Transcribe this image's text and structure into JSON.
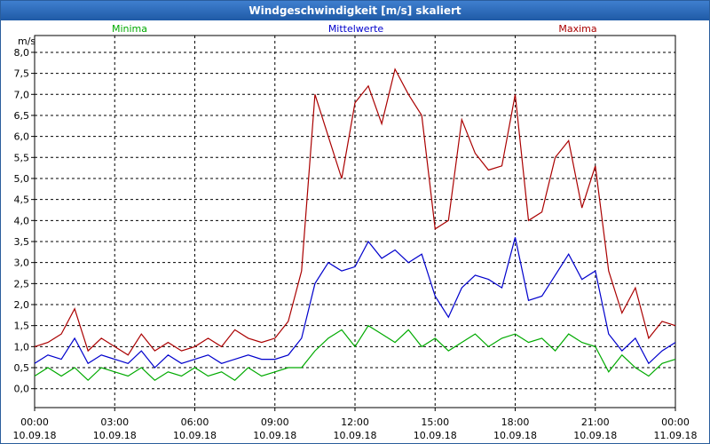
{
  "window": {
    "title": "Windgeschwindigkeit [m/s] skaliert"
  },
  "chart_data": {
    "type": "line",
    "title": "Windgeschwindigkeit [m/s] skaliert",
    "ylabel": "m/s",
    "xlabel": "",
    "ylim": [
      -0.45,
      8.4
    ],
    "xlim": [
      0,
      24
    ],
    "grid": true,
    "yticks": [
      {
        "value": 0,
        "label": "0,0"
      },
      {
        "value": 0.5,
        "label": "0,5"
      },
      {
        "value": 1,
        "label": "1,0"
      },
      {
        "value": 1.5,
        "label": "1,5"
      },
      {
        "value": 2,
        "label": "2,0"
      },
      {
        "value": 2.5,
        "label": "2,5"
      },
      {
        "value": 3,
        "label": "3,0"
      },
      {
        "value": 3.5,
        "label": "3,5"
      },
      {
        "value": 4,
        "label": "4,0"
      },
      {
        "value": 4.5,
        "label": "4,5"
      },
      {
        "value": 5,
        "label": "5,0"
      },
      {
        "value": 5.5,
        "label": "5,5"
      },
      {
        "value": 6,
        "label": "6,0"
      },
      {
        "value": 6.5,
        "label": "6,5"
      },
      {
        "value": 7,
        "label": "7,0"
      },
      {
        "value": 7.5,
        "label": "7,5"
      },
      {
        "value": 8,
        "label": "8,0"
      }
    ],
    "xticks": [
      {
        "value": 0,
        "time": "00:00",
        "date": "10.09.18"
      },
      {
        "value": 3,
        "time": "03:00",
        "date": "10.09.18"
      },
      {
        "value": 6,
        "time": "06:00",
        "date": "10.09.18"
      },
      {
        "value": 9,
        "time": "09:00",
        "date": "10.09.18"
      },
      {
        "value": 12,
        "time": "12:00",
        "date": "10.09.18"
      },
      {
        "value": 15,
        "time": "15:00",
        "date": "10.09.18"
      },
      {
        "value": 18,
        "time": "18:00",
        "date": "10.09.18"
      },
      {
        "value": 21,
        "time": "21:00",
        "date": "10.09.18"
      },
      {
        "value": 24,
        "time": "00:00",
        "date": "11.09.18"
      }
    ],
    "x": [
      0.0,
      0.5,
      1.0,
      1.5,
      2.0,
      2.5,
      3.0,
      3.5,
      4.0,
      4.5,
      5.0,
      5.5,
      6.0,
      6.5,
      7.0,
      7.5,
      8.0,
      8.5,
      9.0,
      9.5,
      10.0,
      10.5,
      11.0,
      11.5,
      12.0,
      12.5,
      13.0,
      13.5,
      14.0,
      14.5,
      15.0,
      15.5,
      16.0,
      16.5,
      17.0,
      17.5,
      18.0,
      18.5,
      19.0,
      19.5,
      20.0,
      20.5,
      21.0,
      21.5,
      22.0,
      22.5,
      23.0,
      23.5,
      24.0
    ],
    "series": [
      {
        "name": "Minima",
        "color": "#00aa00",
        "values": [
          0.3,
          0.5,
          0.3,
          0.5,
          0.2,
          0.5,
          0.4,
          0.3,
          0.5,
          0.2,
          0.4,
          0.3,
          0.5,
          0.3,
          0.4,
          0.2,
          0.5,
          0.3,
          0.4,
          0.5,
          0.5,
          0.9,
          1.2,
          1.4,
          1.0,
          1.5,
          1.3,
          1.1,
          1.4,
          1.0,
          1.2,
          0.9,
          1.1,
          1.3,
          1.0,
          1.2,
          1.3,
          1.1,
          1.2,
          0.9,
          1.3,
          1.1,
          1.0,
          0.4,
          0.8,
          0.5,
          0.3,
          0.6,
          0.7
        ]
      },
      {
        "name": "Mittelwerte",
        "color": "#0000cc",
        "values": [
          0.6,
          0.8,
          0.7,
          1.2,
          0.6,
          0.8,
          0.7,
          0.6,
          0.9,
          0.5,
          0.8,
          0.6,
          0.7,
          0.8,
          0.6,
          0.7,
          0.8,
          0.7,
          0.7,
          0.8,
          1.2,
          2.5,
          3.0,
          2.8,
          2.9,
          3.5,
          3.1,
          3.3,
          3.0,
          3.2,
          2.2,
          1.7,
          2.4,
          2.7,
          2.6,
          2.4,
          3.6,
          2.1,
          2.2,
          2.7,
          3.2,
          2.6,
          2.8,
          1.3,
          0.9,
          1.2,
          0.6,
          0.9,
          1.1
        ]
      },
      {
        "name": "Maxima",
        "color": "#aa0000",
        "values": [
          1.0,
          1.1,
          1.3,
          1.9,
          0.9,
          1.2,
          1.0,
          0.8,
          1.3,
          0.9,
          1.1,
          0.9,
          1.0,
          1.2,
          1.0,
          1.4,
          1.2,
          1.1,
          1.2,
          1.6,
          2.8,
          7.0,
          6.0,
          5.0,
          6.8,
          7.2,
          6.3,
          7.6,
          7.0,
          6.5,
          3.8,
          4.0,
          6.4,
          5.6,
          5.2,
          5.3,
          7.0,
          4.0,
          4.2,
          5.5,
          5.9,
          4.3,
          5.3,
          2.8,
          1.8,
          2.4,
          1.2,
          1.6,
          1.5
        ]
      }
    ]
  }
}
